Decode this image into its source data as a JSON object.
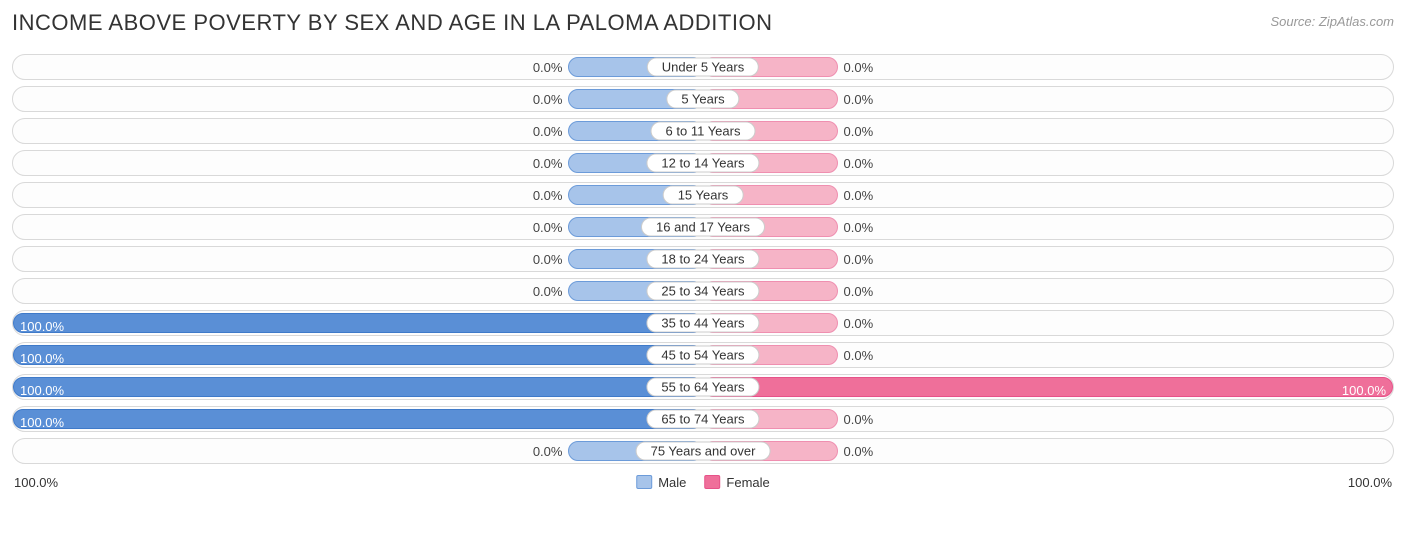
{
  "title": "INCOME ABOVE POVERTY BY SEX AND AGE IN LA PALOMA ADDITION",
  "source": "Source: ZipAtlas.com",
  "axis": {
    "left": "100.0%",
    "right": "100.0%"
  },
  "legend": {
    "male": "Male",
    "female": "Female"
  },
  "colors": {
    "male_fill": "#a7c4ea",
    "male_border": "#6c9bd9",
    "male_full_fill": "#5a8fd6",
    "male_full_border": "#3f7ac9",
    "female_fill": "#f6b4c7",
    "female_border": "#ef8fb0",
    "female_full_fill": "#ef6f9a",
    "female_full_border": "#e65289",
    "track_border": "#d9d9d9",
    "text": "#444444"
  },
  "min_bar_pct": 19.5,
  "rows": [
    {
      "category": "Under 5 Years",
      "male": 0.0,
      "male_label": "0.0%",
      "female": 0.0,
      "female_label": "0.0%"
    },
    {
      "category": "5 Years",
      "male": 0.0,
      "male_label": "0.0%",
      "female": 0.0,
      "female_label": "0.0%"
    },
    {
      "category": "6 to 11 Years",
      "male": 0.0,
      "male_label": "0.0%",
      "female": 0.0,
      "female_label": "0.0%"
    },
    {
      "category": "12 to 14 Years",
      "male": 0.0,
      "male_label": "0.0%",
      "female": 0.0,
      "female_label": "0.0%"
    },
    {
      "category": "15 Years",
      "male": 0.0,
      "male_label": "0.0%",
      "female": 0.0,
      "female_label": "0.0%"
    },
    {
      "category": "16 and 17 Years",
      "male": 0.0,
      "male_label": "0.0%",
      "female": 0.0,
      "female_label": "0.0%"
    },
    {
      "category": "18 to 24 Years",
      "male": 0.0,
      "male_label": "0.0%",
      "female": 0.0,
      "female_label": "0.0%"
    },
    {
      "category": "25 to 34 Years",
      "male": 0.0,
      "male_label": "0.0%",
      "female": 0.0,
      "female_label": "0.0%"
    },
    {
      "category": "35 to 44 Years",
      "male": 100.0,
      "male_label": "100.0%",
      "female": 0.0,
      "female_label": "0.0%"
    },
    {
      "category": "45 to 54 Years",
      "male": 100.0,
      "male_label": "100.0%",
      "female": 0.0,
      "female_label": "0.0%"
    },
    {
      "category": "55 to 64 Years",
      "male": 100.0,
      "male_label": "100.0%",
      "female": 100.0,
      "female_label": "100.0%"
    },
    {
      "category": "65 to 74 Years",
      "male": 100.0,
      "male_label": "100.0%",
      "female": 0.0,
      "female_label": "0.0%"
    },
    {
      "category": "75 Years and over",
      "male": 0.0,
      "male_label": "0.0%",
      "female": 0.0,
      "female_label": "0.0%"
    }
  ]
}
